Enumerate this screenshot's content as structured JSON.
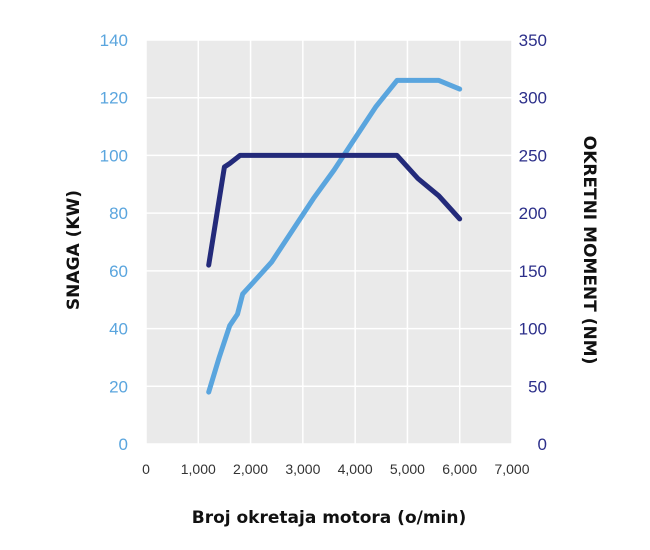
{
  "colors": {
    "plot_background": "#eaeaea",
    "grid": "#ffffff",
    "power_line": "#5aa5de",
    "torque_line": "#232a7a",
    "left_tick_text": "#5aa5de",
    "right_tick_text": "#2c2f8a"
  },
  "chart_data": {
    "type": "line",
    "xlabel": "Broj okretaja motora (o/min)",
    "ylabel": "SNAGA (KW)",
    "y2label": "OKRETNI MOMENT (NM)",
    "xlim": [
      0,
      7000
    ],
    "ylim": [
      0,
      140
    ],
    "y2lim": [
      0,
      350
    ],
    "grid": true,
    "x_ticks": [
      "0",
      "1,000",
      "2,000",
      "3,000",
      "4,000",
      "5,000",
      "6,000",
      "7,000"
    ],
    "y_ticks": [
      "0",
      "20",
      "40",
      "60",
      "80",
      "100",
      "120",
      "140"
    ],
    "y2_ticks": [
      "0",
      "50",
      "100",
      "150",
      "200",
      "250",
      "300",
      "350"
    ],
    "series": [
      {
        "axis": "left",
        "color": "#5aa5de",
        "x": [
          1200,
          1400,
          1600,
          1750,
          1850,
          2000,
          2400,
          2800,
          3200,
          3600,
          4000,
          4400,
          4800,
          5000,
          5600,
          6000
        ],
        "y": [
          18,
          30,
          41,
          45,
          52,
          55,
          63,
          74,
          85,
          95,
          106,
          117,
          126,
          126,
          126,
          123
        ]
      },
      {
        "axis": "right",
        "color": "#232a7a",
        "x": [
          1200,
          1500,
          1600,
          1800,
          2000,
          2500,
          3000,
          3500,
          4000,
          4500,
          4800,
          5200,
          5600,
          6000
        ],
        "y": [
          155,
          240,
          243,
          250,
          250,
          250,
          250,
          250,
          250,
          250,
          250,
          230,
          215,
          195
        ]
      }
    ]
  }
}
